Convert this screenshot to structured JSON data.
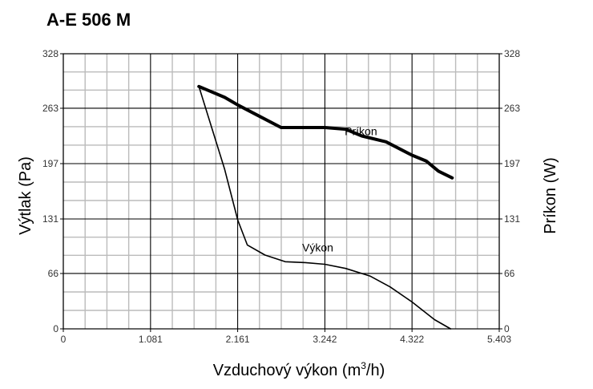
{
  "chart_data": {
    "type": "line",
    "title": "A-E 506 M",
    "xlabel": "Vzduchový výkon (m",
    "xlabel_sup": "3",
    "xlabel_tail": "/h)",
    "ylabel_left": "Výtlak (Pa)",
    "ylabel_right": "Príkon (W)",
    "xlim": [
      0,
      5403
    ],
    "ylim": [
      0,
      328
    ],
    "x_ticks": [
      0,
      1081,
      2161,
      3242,
      4322,
      5403
    ],
    "x_tick_labels": [
      "0",
      "1.081",
      "2.161",
      "3.242",
      "4.322",
      "5.403"
    ],
    "y_ticks": [
      0,
      66,
      131,
      197,
      263,
      328
    ],
    "y_tick_labels": [
      "0",
      "66",
      "131",
      "197",
      "263",
      "328"
    ],
    "grid": true,
    "series": [
      {
        "name": "Výkon",
        "axis": "left",
        "points": [
          [
            1680,
            289
          ],
          [
            2000,
            190
          ],
          [
            2161,
            130
          ],
          [
            2280,
            100
          ],
          [
            2500,
            88
          ],
          [
            2750,
            80
          ],
          [
            3000,
            79
          ],
          [
            3242,
            77
          ],
          [
            3500,
            72
          ],
          [
            3800,
            63
          ],
          [
            4050,
            50
          ],
          [
            4322,
            32
          ],
          [
            4600,
            11
          ],
          [
            4800,
            0
          ]
        ]
      },
      {
        "name": "Príkon",
        "axis": "right",
        "points": [
          [
            1680,
            289
          ],
          [
            2000,
            276
          ],
          [
            2161,
            267
          ],
          [
            2400,
            255
          ],
          [
            2700,
            240
          ],
          [
            3000,
            240
          ],
          [
            3242,
            240
          ],
          [
            3500,
            238
          ],
          [
            3700,
            230
          ],
          [
            4000,
            223
          ],
          [
            4322,
            207
          ],
          [
            4500,
            200
          ],
          [
            4650,
            188
          ],
          [
            4820,
            180
          ]
        ]
      }
    ],
    "colors": {
      "grid_major": "#000000",
      "grid_minor": "#bbbbbb",
      "line": "#000000"
    }
  }
}
